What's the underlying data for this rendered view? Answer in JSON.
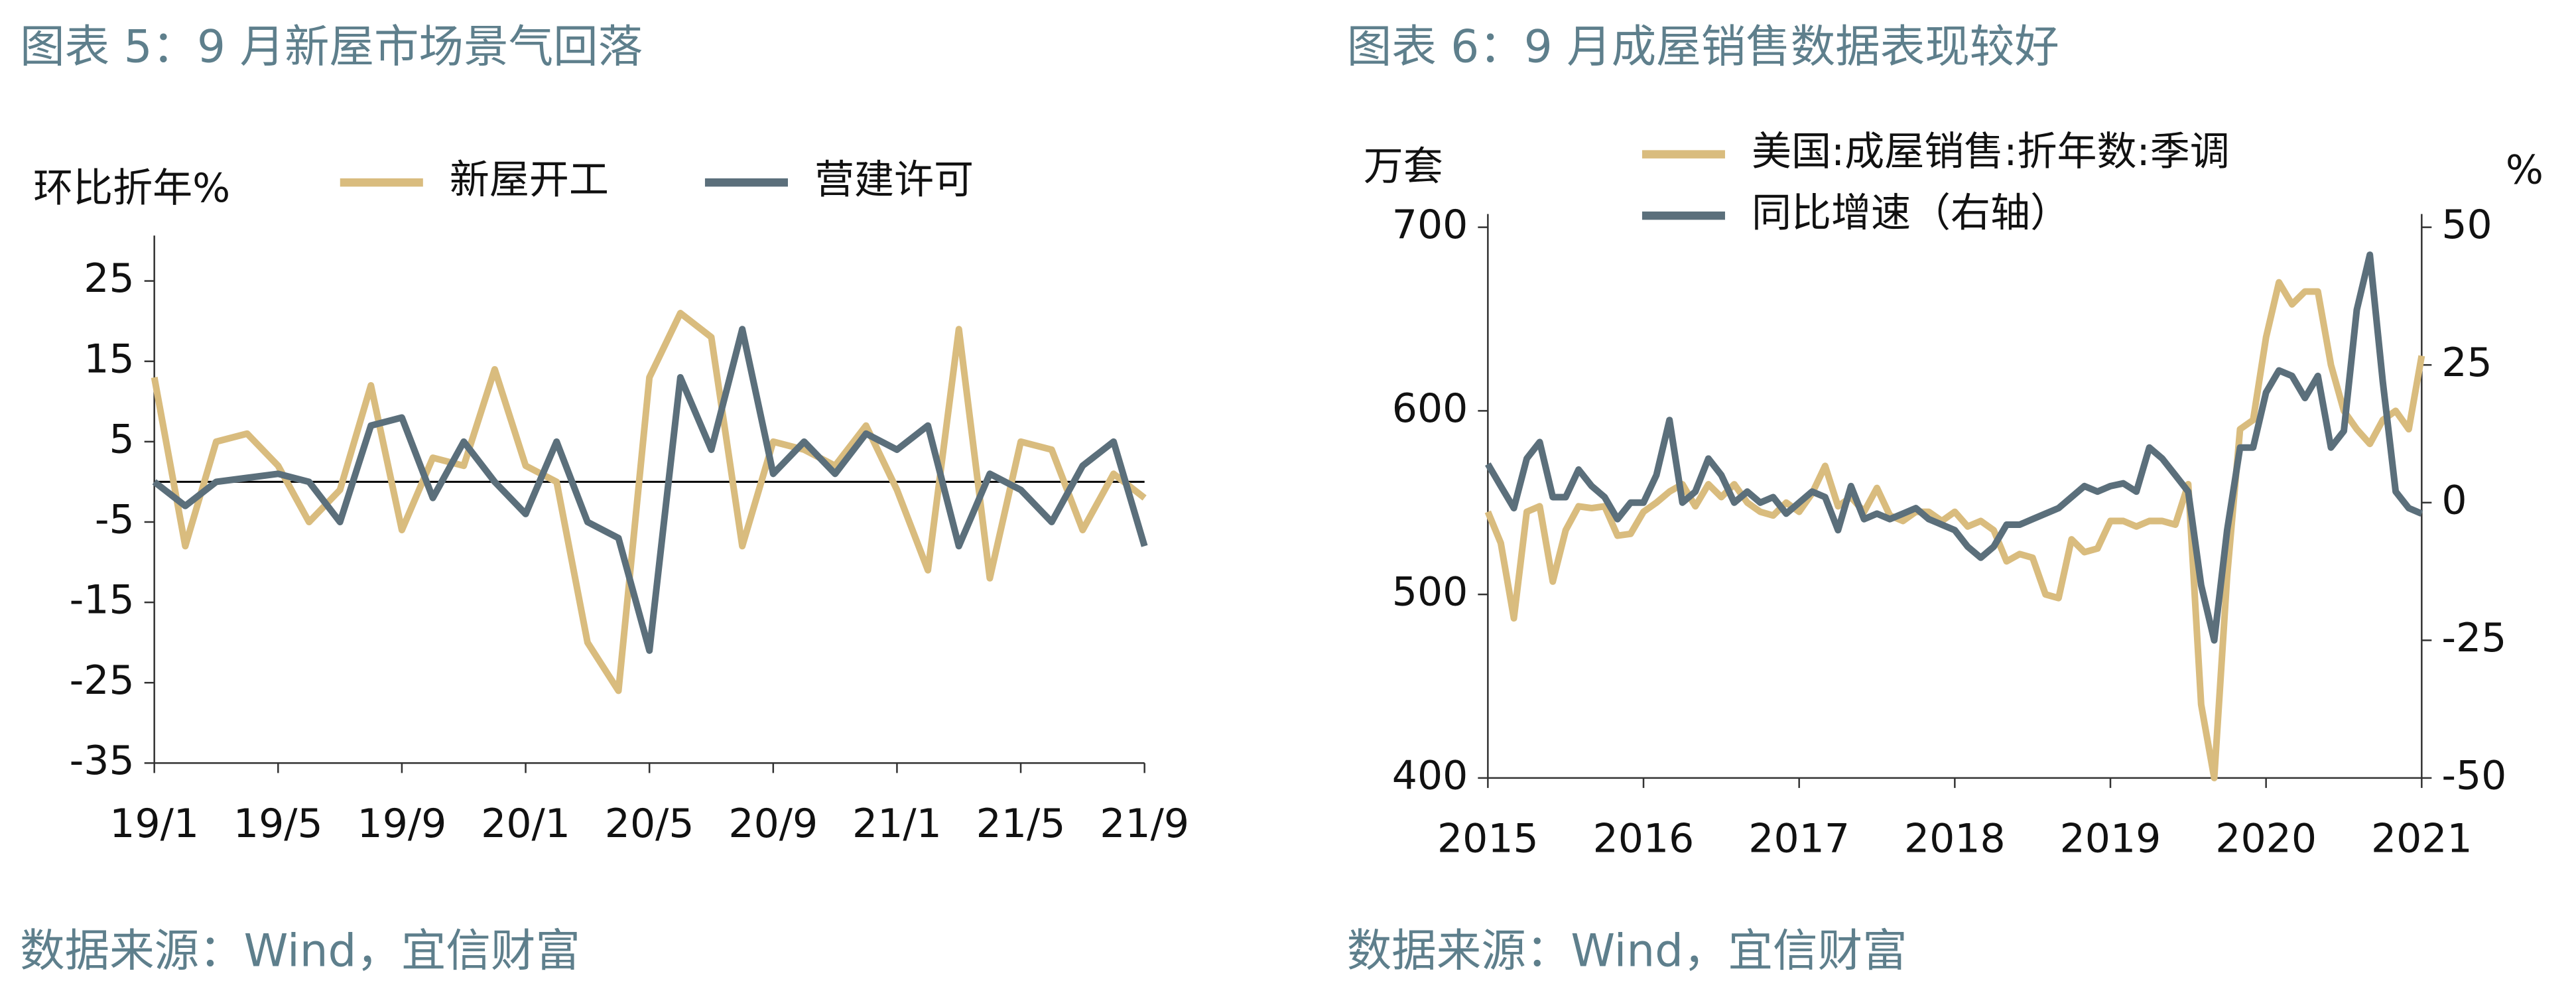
{
  "chart_data": [
    {
      "type": "line",
      "title": "图表 5：9 月新屋市场景气回落",
      "y_label": "环比折年%",
      "source": "数据来源：Wind，宜信财富",
      "categories": [
        "19/1",
        null,
        null,
        null,
        "19/5",
        null,
        null,
        null,
        "19/9",
        null,
        null,
        null,
        "20/1",
        null,
        null,
        null,
        "20/5",
        null,
        null,
        null,
        "20/9",
        null,
        null,
        null,
        "21/1",
        null,
        null,
        null,
        "21/5",
        null,
        null,
        null,
        "21/9"
      ],
      "series": [
        {
          "name": "新屋开工",
          "color": "#d9bc7e",
          "values": [
            13,
            -8,
            5,
            6,
            2,
            -5,
            -1,
            12,
            -6,
            3,
            2,
            14,
            2,
            0,
            -20,
            -26,
            13,
            21,
            18,
            -8,
            5,
            4,
            2,
            7,
            -1,
            -11,
            19,
            -12,
            5,
            4,
            -6,
            1,
            -2
          ]
        },
        {
          "name": "营建许可",
          "color": "#5b6f7b",
          "values": [
            0,
            -3,
            0,
            0.5,
            1,
            0,
            -5,
            7,
            8,
            -2,
            5,
            0,
            -4,
            5,
            -5,
            -7,
            -21,
            13,
            4,
            19,
            1,
            5,
            1,
            6,
            4,
            7,
            -8,
            1,
            -1,
            -5,
            2,
            5,
            -8
          ]
        }
      ],
      "ylim": [
        -35,
        29
      ],
      "yticks": [
        -35,
        -25,
        -15,
        -5,
        5,
        15,
        25
      ]
    },
    {
      "type": "line",
      "title": "图表 6：9 月成屋销售数据表现较好",
      "y_label": "万套",
      "y2_label": "%",
      "source": "数据来源：Wind，宜信财富",
      "x": [
        2015,
        2015.083,
        2015.167,
        2015.25,
        2015.333,
        2015.417,
        2015.5,
        2015.583,
        2015.667,
        2015.75,
        2015.833,
        2015.917,
        2016,
        2016.083,
        2016.167,
        2016.25,
        2016.333,
        2016.417,
        2016.5,
        2016.583,
        2016.667,
        2016.75,
        2016.833,
        2016.917,
        2017,
        2017.083,
        2017.167,
        2017.25,
        2017.333,
        2017.417,
        2017.5,
        2017.583,
        2017.667,
        2017.75,
        2017.833,
        2017.917,
        2018,
        2018.083,
        2018.167,
        2018.25,
        2018.333,
        2018.417,
        2018.5,
        2018.583,
        2018.667,
        2018.75,
        2018.833,
        2018.917,
        2019,
        2019.083,
        2019.167,
        2019.25,
        2019.333,
        2019.417,
        2019.5,
        2019.583,
        2019.667,
        2019.75,
        2019.833,
        2019.917,
        2020,
        2020.083,
        2020.167,
        2020.25,
        2020.333,
        2020.417,
        2020.5,
        2020.583,
        2020.667,
        2020.75,
        2020.833,
        2020.917,
        2021
      ],
      "series": [
        {
          "name": "美国:成屋销售:折年数:季调",
          "color": "#d9bc7e",
          "values": [
            545,
            528,
            487,
            545,
            548,
            507,
            535,
            548,
            547,
            548,
            532,
            533,
            545,
            550,
            556,
            560,
            548,
            560,
            553,
            560,
            550,
            545,
            543,
            550,
            545,
            555,
            570,
            548,
            553,
            545,
            558,
            543,
            540,
            545,
            545,
            540,
            545,
            537,
            540,
            535,
            518,
            522,
            520,
            500,
            498,
            530,
            523,
            525,
            540,
            540,
            537,
            540,
            540,
            538,
            560,
            440,
            400,
            510,
            590,
            595,
            640,
            670,
            658,
            665,
            665,
            625,
            600,
            590,
            582,
            595,
            600,
            590,
            630
          ]
        },
        {
          "name": "同比增速（右轴）",
          "color": "#5b6f7b",
          "axis": "y2",
          "values": [
            7,
            3,
            -1,
            8,
            11,
            1,
            1,
            6,
            3,
            1,
            -3,
            0,
            0,
            5,
            15,
            0,
            2,
            8,
            5,
            0,
            2,
            0,
            1,
            -2,
            0,
            2,
            1,
            -5,
            3,
            -3,
            -2,
            -3,
            -2,
            -1,
            -3,
            -4,
            -5,
            -8,
            -10,
            -8,
            -4,
            -4,
            -3,
            -2,
            -1,
            1,
            3,
            2,
            3,
            3.5,
            2,
            10,
            8,
            5,
            2,
            -15,
            -25,
            -5,
            10,
            10,
            20,
            24,
            23,
            19,
            23,
            10,
            13,
            35,
            45,
            22,
            2,
            -1,
            -2
          ]
        }
      ],
      "xlim": [
        2015,
        2021
      ],
      "xticks": [
        2015,
        2016,
        2017,
        2018,
        2019,
        2020,
        2021
      ],
      "ylim": [
        400,
        700
      ],
      "yticks": [
        400,
        500,
        600,
        700
      ],
      "y2lim": [
        -50,
        50
      ],
      "y2ticks": [
        -50,
        -25,
        0,
        25,
        50
      ]
    }
  ]
}
